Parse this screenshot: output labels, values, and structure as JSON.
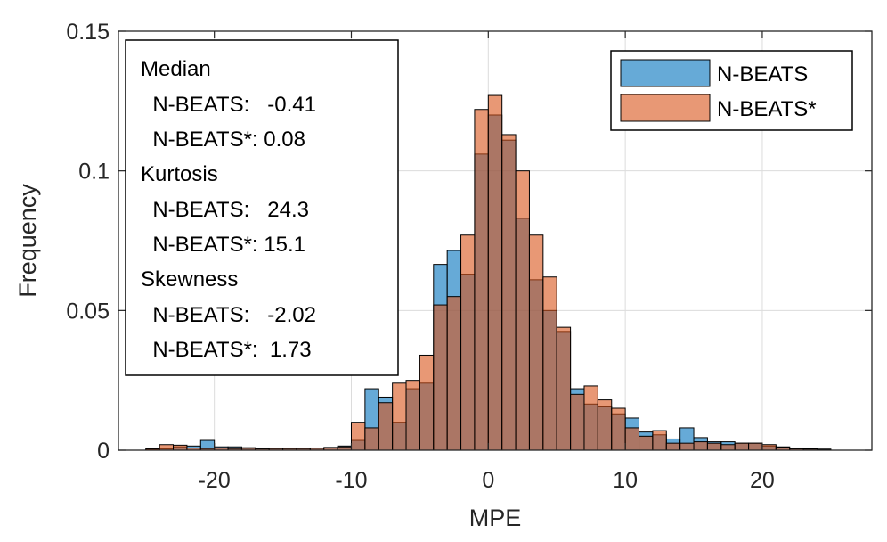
{
  "chart_data": {
    "type": "histogram",
    "xlabel": "MPE",
    "ylabel": "Frequency",
    "xlim": [
      -27,
      28
    ],
    "ylim": [
      0,
      0.15
    ],
    "xticks": [
      -20,
      -10,
      0,
      10,
      20
    ],
    "xtick_labels": [
      "-20",
      "-10",
      "0",
      "10",
      "20"
    ],
    "yticks": [
      0,
      0.05,
      0.1,
      0.15
    ],
    "ytick_labels": [
      "0",
      "0.05",
      "0.1",
      "0.15"
    ],
    "grid": true,
    "bin_edges": [
      -25,
      -24,
      -23,
      -22,
      -21,
      -20,
      -19,
      -18,
      -17,
      -16,
      -15,
      -14,
      -13,
      -12,
      -11,
      -10,
      -9,
      -8,
      -7,
      -6,
      -5,
      -4,
      -3,
      -2,
      -1,
      0,
      1,
      2,
      3,
      4,
      5,
      6,
      7,
      8,
      9,
      10,
      11,
      12,
      13,
      14,
      15,
      16,
      17,
      18,
      19,
      20,
      21,
      22,
      23,
      24,
      25
    ],
    "series": [
      {
        "name": "N-BEATS",
        "color": "#0072BD",
        "values": [
          0.0003,
          0.0005,
          0.0012,
          0.0015,
          0.0035,
          0.0012,
          0.0012,
          0.0009,
          0.0008,
          0.0006,
          0.0006,
          0.0006,
          0.0008,
          0.001,
          0.0015,
          0.0035,
          0.022,
          0.019,
          0.01,
          0.022,
          0.024,
          0.0665,
          0.0715,
          0.063,
          0.106,
          0.12,
          0.111,
          0.083,
          0.061,
          0.05,
          0.0425,
          0.022,
          0.0165,
          0.0155,
          0.013,
          0.0115,
          0.0065,
          0.0055,
          0.004,
          0.008,
          0.0045,
          0.003,
          0.003,
          0.0025,
          0.0025,
          0.0015,
          0.0012,
          0.0008,
          0.0006,
          0.0004
        ]
      },
      {
        "name": "N-BEATS*",
        "color": "#D95319",
        "values": [
          0.0005,
          0.002,
          0.0018,
          0.0008,
          0.0006,
          0.0008,
          0.0006,
          0.0007,
          0.0005,
          0.0006,
          0.0006,
          0.0006,
          0.0007,
          0.0008,
          0.0012,
          0.01,
          0.008,
          0.017,
          0.024,
          0.025,
          0.034,
          0.052,
          0.055,
          0.077,
          0.122,
          0.127,
          0.113,
          0.1,
          0.077,
          0.062,
          0.044,
          0.02,
          0.023,
          0.018,
          0.015,
          0.008,
          0.005,
          0.007,
          0.0025,
          0.0025,
          0.003,
          0.0025,
          0.002,
          0.0025,
          0.0025,
          0.002,
          0.001,
          0.0005,
          0.0004,
          0.0003
        ]
      }
    ],
    "legend": [
      "N-BEATS",
      "N-BEATS*"
    ],
    "legend_position": "top-right",
    "annotation": {
      "lines": [
        "Median",
        "  N-BEATS:   -0.41",
        "  N-BEATS*: 0.08",
        "Kurtosis",
        "  N-BEATS:   24.3",
        "  N-BEATS*: 15.1",
        "Skewness",
        "  N-BEATS:   -2.02",
        "  N-BEATS*:  1.73"
      ],
      "position": "top-left"
    }
  }
}
